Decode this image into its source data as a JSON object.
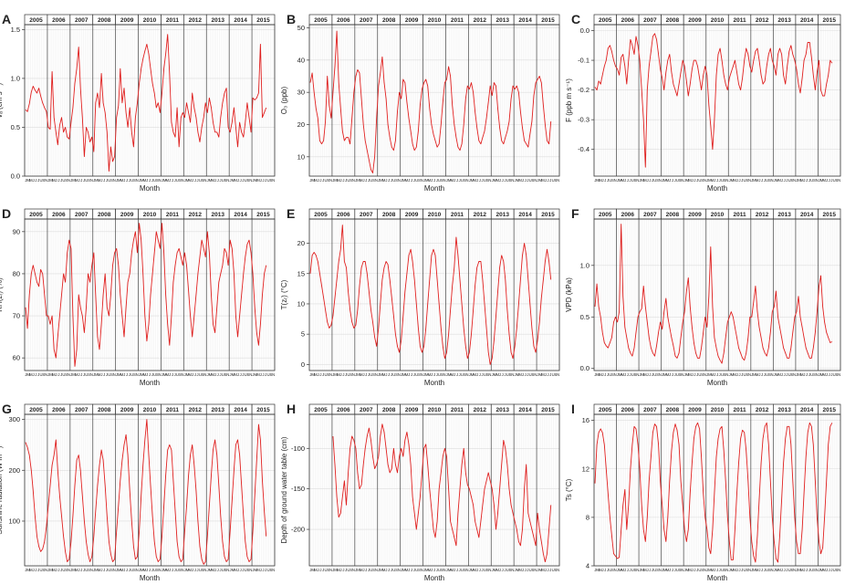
{
  "figure": {
    "years": [
      "2005",
      "2006",
      "2007",
      "2008",
      "2009",
      "2010",
      "2011",
      "2012",
      "2013",
      "2014",
      "2015"
    ],
    "month_letters": "JMMJJJUSN",
    "line_color": "#e0201f"
  },
  "chart_data": [
    {
      "id": "A",
      "type": "line",
      "letter": "A",
      "ylabel": "vₐ (cm s⁻¹)",
      "xlabel": "Month",
      "ylim": [
        0.0,
        1.55
      ],
      "yticks": [
        0.0,
        0.5,
        1.0,
        1.5
      ],
      "ytick_labels": [
        "0.0",
        "0.5",
        "1.0",
        "1.5"
      ],
      "series_color": "#e0201f",
      "monthly_values": [
        0.68,
        0.66,
        0.74,
        0.86,
        0.92,
        0.88,
        0.85,
        0.9,
        0.82,
        0.75,
        0.7,
        0.66,
        0.5,
        0.48,
        1.07,
        0.6,
        0.45,
        0.32,
        0.52,
        0.6,
        0.45,
        0.5,
        0.4,
        0.38,
        0.55,
        0.7,
        0.95,
        1.1,
        1.32,
        0.9,
        0.6,
        0.2,
        0.5,
        0.45,
        0.35,
        0.4,
        0.25,
        0.75,
        0.85,
        0.7,
        1.05,
        0.75,
        0.65,
        0.45,
        0.05,
        0.3,
        0.15,
        0.2,
        0.6,
        0.72,
        1.1,
        0.75,
        0.9,
        0.65,
        0.5,
        0.7,
        0.45,
        0.3,
        0.6,
        0.75,
        0.95,
        1.1,
        1.2,
        1.28,
        1.35,
        1.25,
        1.1,
        0.95,
        0.85,
        0.7,
        0.75,
        0.65,
        0.85,
        1.1,
        1.25,
        1.45,
        1.05,
        0.55,
        0.45,
        0.4,
        0.7,
        0.3,
        0.6,
        0.65,
        0.6,
        0.75,
        0.65,
        0.55,
        0.85,
        0.7,
        0.6,
        0.45,
        0.35,
        0.5,
        0.6,
        0.75,
        0.65,
        0.8,
        0.7,
        0.55,
        0.45,
        0.45,
        0.4,
        0.6,
        0.75,
        0.85,
        0.9,
        0.5,
        0.45,
        0.55,
        0.7,
        0.5,
        0.3,
        0.55,
        0.45,
        0.4,
        0.55,
        0.75,
        0.6,
        0.45,
        0.8,
        0.78,
        0.8,
        0.85,
        1.35,
        0.6,
        0.65,
        0.7
      ]
    },
    {
      "id": "B",
      "type": "line",
      "letter": "B",
      "ylabel": "O₃ (ppb)",
      "xlabel": "Month",
      "ylim": [
        4,
        51
      ],
      "yticks": [
        10,
        20,
        30,
        40,
        50
      ],
      "ytick_labels": [
        "10",
        "20",
        "30",
        "40",
        "50"
      ],
      "series_color": "#e0201f",
      "monthly_values": [
        33,
        36,
        30,
        25,
        22,
        15,
        14,
        15,
        21,
        35,
        26,
        22,
        30,
        38,
        49,
        33,
        25,
        18,
        15,
        16,
        16,
        14,
        22,
        30,
        35,
        37,
        36,
        28,
        20,
        15,
        12,
        9,
        6,
        5,
        10,
        22,
        32,
        36,
        41,
        33,
        28,
        20,
        16,
        13,
        12,
        15,
        24,
        30,
        28,
        34,
        33,
        27,
        22,
        18,
        14,
        12,
        13,
        18,
        26,
        31,
        33,
        34,
        32,
        25,
        20,
        17,
        15,
        13,
        14,
        20,
        27,
        33,
        34,
        38,
        35,
        26,
        20,
        16,
        13,
        12,
        14,
        20,
        28,
        32,
        31,
        33,
        30,
        24,
        19,
        15,
        14,
        16,
        18,
        22,
        27,
        32,
        29,
        33,
        32,
        25,
        19,
        15,
        14,
        16,
        18,
        21,
        28,
        32,
        31,
        32,
        30,
        24,
        19,
        15,
        14,
        13,
        17,
        21,
        29,
        33,
        34,
        35,
        33,
        26,
        20,
        15,
        14,
        21
      ]
    },
    {
      "id": "C",
      "type": "line",
      "letter": "C",
      "ylabel": "F (ppb m s⁻¹)",
      "xlabel": "Month",
      "ylim": [
        -0.49,
        0.02
      ],
      "yticks": [
        0.0,
        -0.1,
        -0.2,
        -0.3,
        -0.4
      ],
      "ytick_labels": [
        "0.0",
        "-0.1",
        "-0.2",
        "-0.3",
        "-0.4"
      ],
      "series_color": "#e0201f",
      "monthly_values": [
        -0.19,
        -0.2,
        -0.17,
        -0.18,
        -0.15,
        -0.12,
        -0.1,
        -0.06,
        -0.05,
        -0.07,
        -0.1,
        -0.12,
        -0.13,
        -0.15,
        -0.09,
        -0.08,
        -0.12,
        -0.18,
        -0.1,
        -0.03,
        -0.05,
        -0.08,
        -0.02,
        -0.05,
        -0.1,
        -0.2,
        -0.3,
        -0.46,
        -0.2,
        -0.12,
        -0.07,
        -0.02,
        -0.01,
        -0.03,
        -0.08,
        -0.13,
        -0.16,
        -0.2,
        -0.14,
        -0.1,
        -0.08,
        -0.14,
        -0.18,
        -0.2,
        -0.22,
        -0.18,
        -0.14,
        -0.1,
        -0.12,
        -0.17,
        -0.22,
        -0.18,
        -0.13,
        -0.1,
        -0.1,
        -0.12,
        -0.16,
        -0.2,
        -0.15,
        -0.12,
        -0.15,
        -0.25,
        -0.32,
        -0.4,
        -0.3,
        -0.15,
        -0.08,
        -0.06,
        -0.1,
        -0.15,
        -0.18,
        -0.2,
        -0.16,
        -0.14,
        -0.12,
        -0.1,
        -0.14,
        -0.18,
        -0.2,
        -0.16,
        -0.1,
        -0.06,
        -0.08,
        -0.12,
        -0.14,
        -0.1,
        -0.07,
        -0.06,
        -0.1,
        -0.15,
        -0.18,
        -0.17,
        -0.12,
        -0.08,
        -0.06,
        -0.1,
        -0.12,
        -0.15,
        -0.08,
        -0.06,
        -0.08,
        -0.15,
        -0.18,
        -0.12,
        -0.07,
        -0.05,
        -0.08,
        -0.1,
        -0.13,
        -0.18,
        -0.21,
        -0.16,
        -0.1,
        -0.08,
        -0.04,
        -0.04,
        -0.09,
        -0.15,
        -0.2,
        -0.14,
        -0.1,
        -0.2,
        -0.22,
        -0.22,
        -0.18,
        -0.15,
        -0.1,
        -0.11
      ]
    },
    {
      "id": "D",
      "type": "line",
      "letter": "D",
      "ylabel": "RH(zᵣ) (%)",
      "xlabel": "Month",
      "ylim": [
        57,
        93
      ],
      "yticks": [
        60,
        70,
        80,
        90
      ],
      "ytick_labels": [
        "60",
        "70",
        "80",
        "90"
      ],
      "series_color": "#e0201f",
      "monthly_values": [
        72,
        67,
        75,
        80,
        82,
        80,
        78,
        77,
        81,
        80,
        75,
        70,
        70,
        68,
        70,
        62,
        60,
        65,
        70,
        75,
        80,
        78,
        85,
        88,
        86,
        70,
        58,
        62,
        75,
        72,
        70,
        66,
        72,
        80,
        78,
        82,
        85,
        75,
        65,
        62,
        68,
        75,
        80,
        72,
        70,
        75,
        82,
        85,
        86,
        82,
        75,
        70,
        65,
        72,
        78,
        80,
        85,
        88,
        90,
        85,
        92,
        88,
        80,
        70,
        64,
        68,
        75,
        80,
        85,
        90,
        88,
        86,
        92,
        85,
        75,
        68,
        63,
        70,
        78,
        82,
        85,
        86,
        84,
        82,
        85,
        82,
        76,
        70,
        65,
        70,
        75,
        80,
        84,
        88,
        86,
        84,
        90,
        85,
        75,
        68,
        66,
        72,
        78,
        80,
        82,
        86,
        85,
        82,
        88,
        86,
        80,
        70,
        65,
        70,
        75,
        80,
        84,
        87,
        88,
        85,
        80,
        72,
        66,
        63,
        68,
        75,
        80,
        82
      ]
    },
    {
      "id": "E",
      "type": "line",
      "letter": "E",
      "ylabel": "T(zᵣ) (°C)",
      "xlabel": "Month",
      "ylim": [
        -1,
        24
      ],
      "yticks": [
        0,
        5,
        10,
        15,
        20
      ],
      "ytick_labels": [
        "0",
        "5",
        "10",
        "15",
        "20"
      ],
      "series_color": "#e0201f",
      "monthly_values": [
        15,
        18,
        18.5,
        18,
        17,
        15,
        13,
        11,
        9,
        7,
        6,
        6.5,
        8,
        11,
        14,
        17,
        19,
        23,
        17,
        16,
        12,
        9,
        7,
        6,
        6.5,
        9,
        13,
        16,
        17,
        17,
        15,
        12,
        9,
        7,
        4.5,
        3,
        6,
        10,
        14,
        16,
        17,
        16.5,
        14,
        11,
        8,
        5,
        3,
        2,
        4,
        8,
        12,
        15,
        18,
        19,
        17,
        14,
        10,
        6,
        3,
        2,
        3,
        6,
        10,
        14,
        18,
        19,
        18,
        14,
        10,
        6,
        3,
        1,
        2,
        5,
        9,
        13,
        16,
        21,
        18,
        14,
        10,
        6,
        3,
        1,
        2,
        5,
        9,
        13,
        16,
        17,
        17,
        14,
        10,
        6,
        2,
        0,
        1,
        4,
        8,
        12,
        16,
        18,
        17,
        14,
        9,
        5,
        2,
        1,
        3,
        6,
        10,
        14,
        18,
        20,
        18,
        14,
        10,
        6,
        3,
        2,
        4,
        7,
        11,
        14,
        17,
        19,
        17,
        14
      ]
    },
    {
      "id": "F",
      "type": "line",
      "letter": "F",
      "ylabel": "VPD (kPa)",
      "xlabel": "Month",
      "ylim": [
        -0.02,
        1.45
      ],
      "yticks": [
        0.0,
        0.5,
        1.0
      ],
      "ytick_labels": [
        "0.0",
        "0.5",
        "1.0"
      ],
      "series_color": "#e0201f",
      "monthly_values": [
        0.6,
        0.82,
        0.6,
        0.5,
        0.35,
        0.25,
        0.22,
        0.2,
        0.25,
        0.3,
        0.45,
        0.5,
        0.45,
        0.55,
        1.4,
        0.7,
        0.4,
        0.3,
        0.2,
        0.15,
        0.12,
        0.2,
        0.35,
        0.5,
        0.55,
        0.58,
        0.8,
        0.6,
        0.45,
        0.3,
        0.2,
        0.15,
        0.12,
        0.22,
        0.35,
        0.45,
        0.38,
        0.55,
        0.68,
        0.5,
        0.4,
        0.3,
        0.22,
        0.12,
        0.1,
        0.15,
        0.3,
        0.45,
        0.55,
        0.75,
        0.88,
        0.6,
        0.4,
        0.25,
        0.15,
        0.1,
        0.1,
        0.2,
        0.35,
        0.5,
        0.4,
        0.7,
        1.18,
        0.6,
        0.3,
        0.2,
        0.12,
        0.08,
        0.05,
        0.15,
        0.3,
        0.45,
        0.5,
        0.55,
        0.5,
        0.4,
        0.3,
        0.2,
        0.15,
        0.1,
        0.08,
        0.15,
        0.3,
        0.5,
        0.5,
        0.65,
        0.8,
        0.55,
        0.4,
        0.3,
        0.2,
        0.15,
        0.12,
        0.2,
        0.35,
        0.55,
        0.6,
        0.75,
        0.5,
        0.4,
        0.3,
        0.2,
        0.15,
        0.1,
        0.1,
        0.2,
        0.35,
        0.5,
        0.55,
        0.7,
        0.5,
        0.4,
        0.3,
        0.2,
        0.15,
        0.1,
        0.1,
        0.2,
        0.35,
        0.55,
        0.8,
        0.9,
        0.6,
        0.45,
        0.35,
        0.3,
        0.25,
        0.26
      ]
    },
    {
      "id": "G",
      "type": "line",
      "letter": "G",
      "ylabel": "Sunshine radiation (W m⁻²)",
      "xlabel": "Month",
      "ylim": [
        12,
        310
      ],
      "yticks": [
        100,
        200,
        300
      ],
      "ytick_labels": [
        "100",
        "200",
        "300"
      ],
      "series_color": "#e0201f",
      "monthly_values": [
        255,
        245,
        230,
        200,
        160,
        110,
        70,
        50,
        40,
        45,
        60,
        90,
        130,
        170,
        210,
        230,
        260,
        200,
        150,
        110,
        70,
        40,
        20,
        25,
        60,
        110,
        170,
        220,
        230,
        200,
        150,
        100,
        60,
        35,
        20,
        30,
        70,
        120,
        170,
        210,
        240,
        220,
        170,
        110,
        60,
        35,
        20,
        25,
        80,
        130,
        180,
        220,
        250,
        270,
        230,
        160,
        100,
        50,
        25,
        30,
        80,
        150,
        210,
        260,
        300,
        230,
        170,
        110,
        60,
        30,
        20,
        25,
        70,
        130,
        190,
        240,
        250,
        240,
        180,
        120,
        60,
        30,
        20,
        25,
        80,
        130,
        190,
        230,
        250,
        210,
        160,
        100,
        50,
        25,
        15,
        20,
        70,
        130,
        190,
        240,
        260,
        230,
        170,
        110,
        60,
        30,
        20,
        25,
        80,
        140,
        200,
        250,
        260,
        230,
        170,
        110,
        60,
        30,
        20,
        25,
        80,
        150,
        220,
        290,
        260,
        180,
        120,
        70
      ]
    },
    {
      "id": "H",
      "type": "line",
      "letter": "H",
      "ylabel": "Depth of ground water table (cm)",
      "xlabel": "Month",
      "ylim": [
        -245,
        -58
      ],
      "yticks": [
        -100,
        -150,
        -200
      ],
      "ytick_labels": [
        "-100",
        "-150",
        "-200"
      ],
      "series_color": "#e0201f",
      "monthly_values": [
        null,
        null,
        null,
        null,
        null,
        null,
        null,
        null,
        null,
        null,
        null,
        null,
        -85,
        -120,
        -160,
        -185,
        -180,
        -160,
        -140,
        -170,
        -130,
        -100,
        -85,
        -90,
        -100,
        -130,
        -150,
        -145,
        -120,
        -100,
        -85,
        -75,
        -90,
        -110,
        -125,
        -120,
        -110,
        -85,
        -70,
        -80,
        -100,
        -120,
        -130,
        -125,
        -100,
        -120,
        -130,
        -110,
        -100,
        -110,
        -90,
        -80,
        -95,
        -120,
        -160,
        -180,
        -200,
        -180,
        -160,
        -130,
        -100,
        -95,
        -120,
        -150,
        -175,
        -200,
        -210,
        -190,
        -150,
        -130,
        -110,
        -100,
        -110,
        -150,
        -190,
        -200,
        -210,
        -220,
        -180,
        -150,
        -120,
        -100,
        -130,
        -145,
        -150,
        -160,
        -170,
        -190,
        -200,
        -210,
        -190,
        -170,
        -150,
        -140,
        -130,
        -140,
        -150,
        -170,
        -200,
        -180,
        -150,
        -120,
        -90,
        -100,
        -120,
        -150,
        -170,
        -180,
        -190,
        -200,
        -215,
        -220,
        -200,
        -150,
        -120,
        -180,
        -190,
        -200,
        -210,
        -220,
        -180,
        -200,
        -215,
        -230,
        -240,
        -230,
        -200,
        -170
      ]
    },
    {
      "id": "I",
      "type": "line",
      "letter": "I",
      "ylabel": "Ts (°C)",
      "xlabel": "Month",
      "ylim": [
        4,
        16.5
      ],
      "yticks": [
        4,
        8,
        12,
        16
      ],
      "ytick_labels": [
        "4",
        "8",
        "12",
        "16"
      ],
      "series_color": "#e0201f",
      "monthly_values": [
        10.8,
        14,
        15,
        15.3,
        15,
        14,
        12,
        10,
        8,
        6.5,
        5,
        4.8,
        4.6,
        4.7,
        7,
        9,
        10.3,
        7,
        9,
        12,
        14,
        15.5,
        15.3,
        14,
        12,
        9,
        7,
        6,
        8,
        11,
        13,
        15,
        15.7,
        15.5,
        14,
        11,
        9,
        7,
        6,
        8,
        11,
        13.5,
        15,
        15.7,
        15.2,
        14,
        11,
        9,
        7,
        6,
        7,
        10,
        12.5,
        14.5,
        15.5,
        15.8,
        15.3,
        13,
        10,
        8,
        7,
        5.5,
        5,
        7,
        10,
        13,
        14.5,
        15.3,
        15.5,
        13.5,
        11,
        8,
        6,
        4.5,
        4.5,
        7,
        10,
        12.5,
        14.5,
        15.2,
        15,
        13.5,
        11,
        8,
        6,
        4.8,
        4.3,
        6.5,
        9.5,
        12.5,
        14.5,
        15.5,
        15.8,
        14,
        11,
        8,
        6,
        4.6,
        4.3,
        6.5,
        9.5,
        12.5,
        14.5,
        15.5,
        15.5,
        14,
        11,
        8,
        6,
        5,
        5,
        7,
        10,
        13,
        15,
        15.8,
        15.5,
        14,
        11,
        8,
        6,
        5,
        5.5,
        8,
        11,
        14,
        15.5,
        15.8
      ]
    }
  ]
}
